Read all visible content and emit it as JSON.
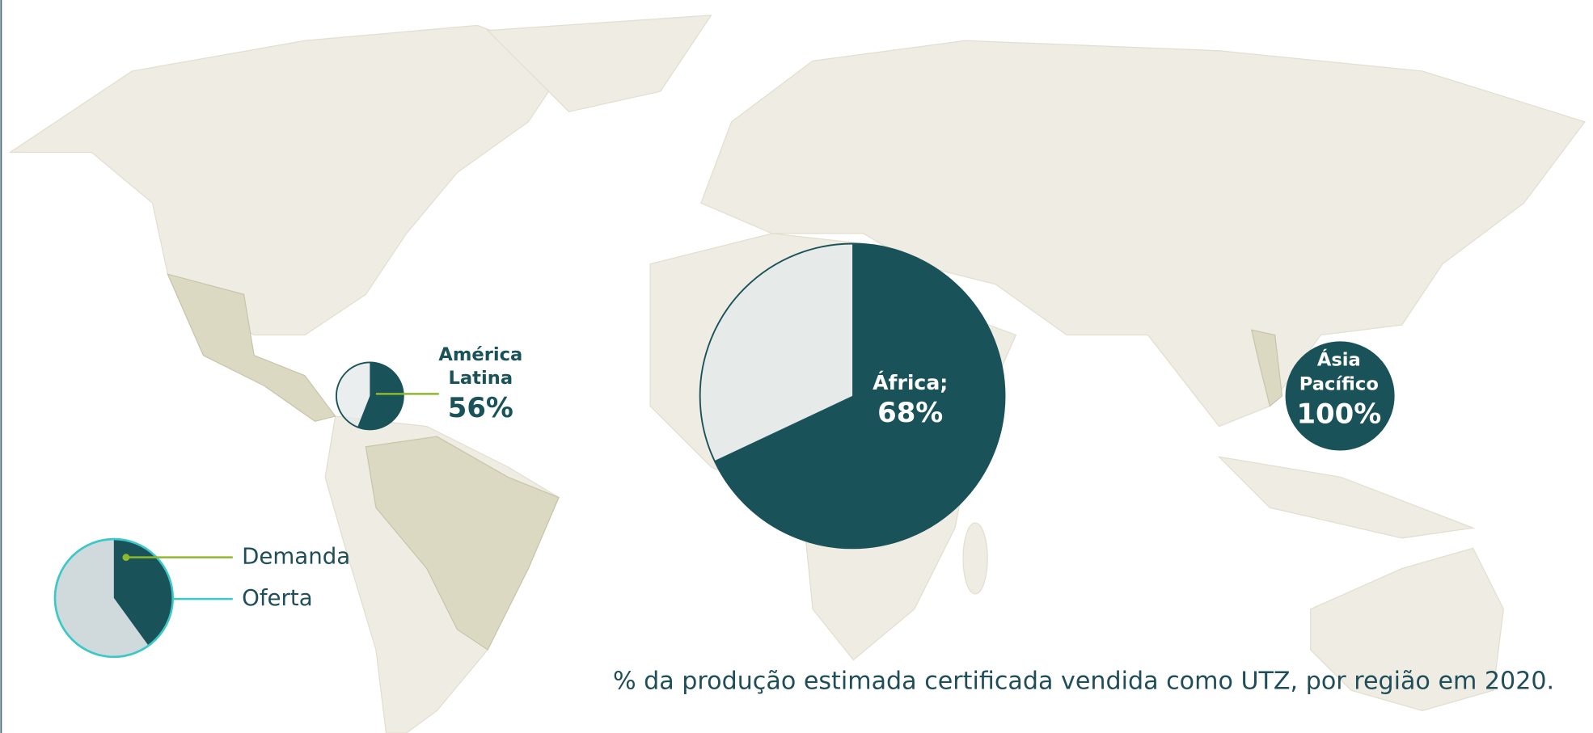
{
  "map": {
    "regions": [
      {
        "name_lines": [
          "América",
          "Latina"
        ],
        "value": 56,
        "value_label": "56%"
      },
      {
        "name_lines": [
          "África;"
        ],
        "value": 68,
        "value_label": "68%"
      },
      {
        "name_lines": [
          "Ásia",
          "Pacífico"
        ],
        "value": 100,
        "value_label": "100%"
      }
    ],
    "legend": [
      "Demanda",
      "Oferta"
    ],
    "caption": "% da produção estimada certificada vendida como UTZ, por região em 2020.",
    "colors": {
      "demand": "#1a525a",
      "supply": "#e3e8e9",
      "land": "#efede3",
      "land_dark": "#dcd9c3",
      "demand_line": "#8fb82b",
      "supply_line": "#3cc8c8"
    }
  }
}
